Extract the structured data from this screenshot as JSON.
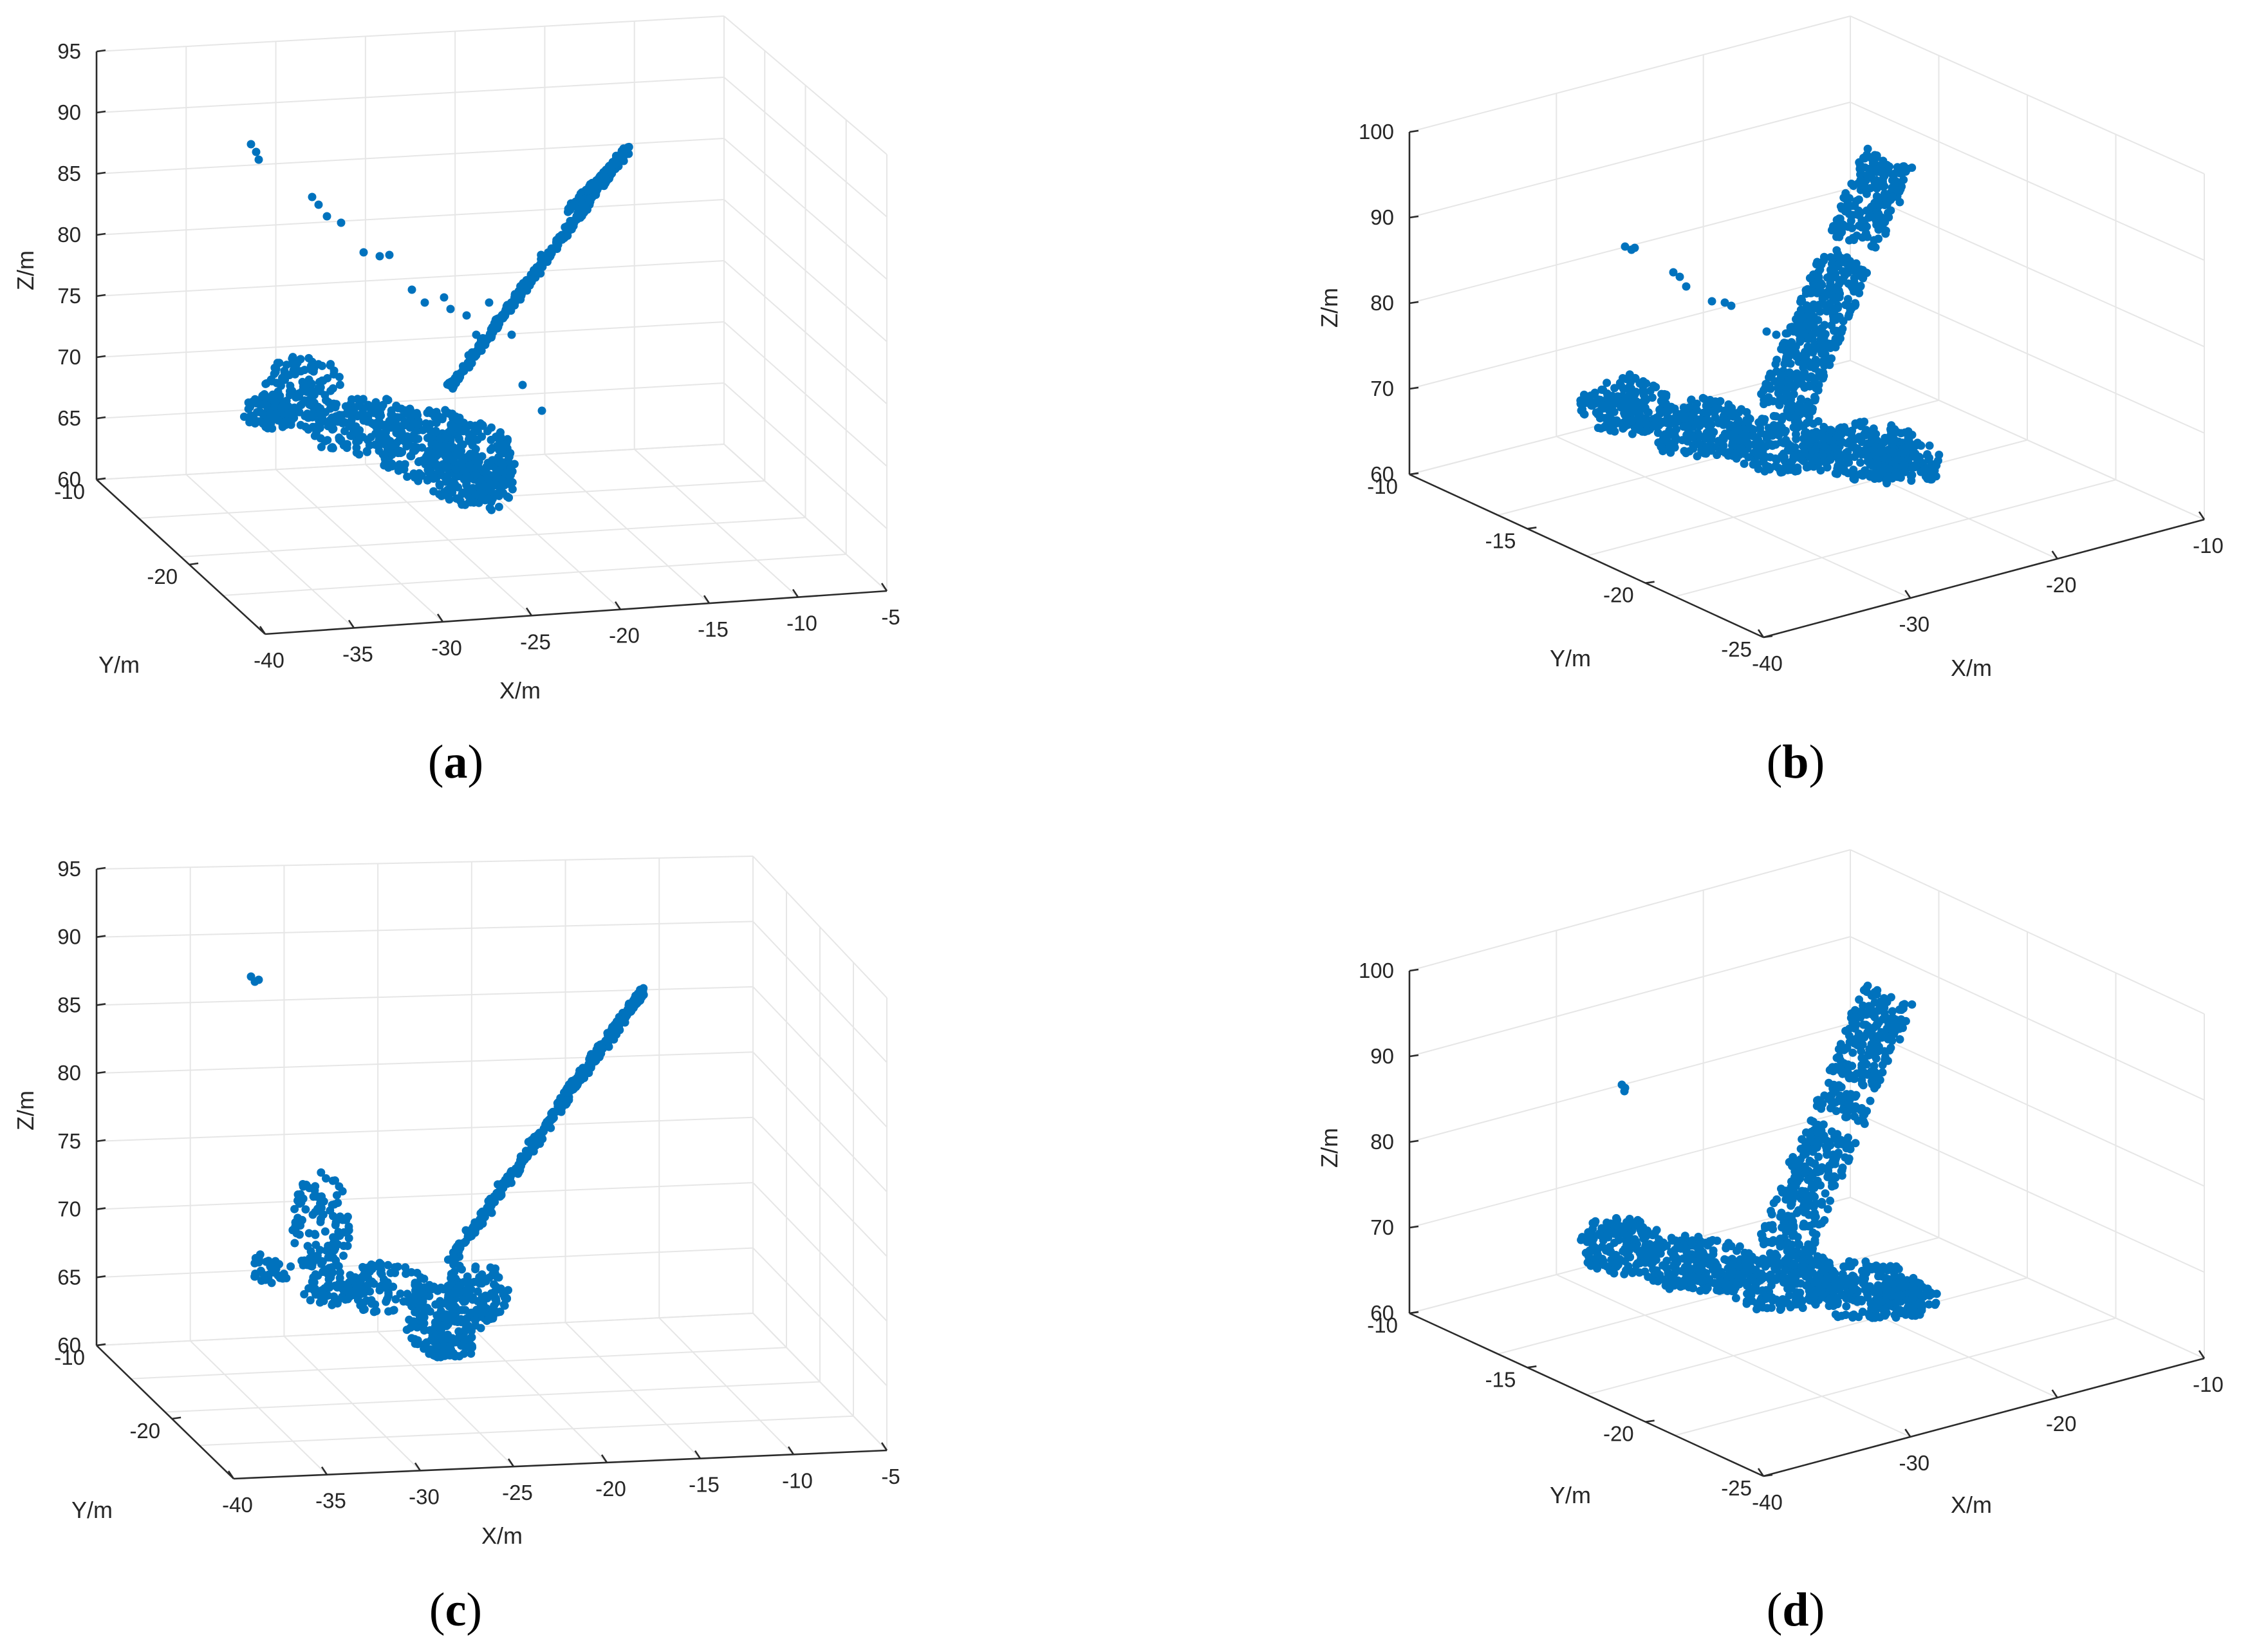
{
  "chart_data": [
    {
      "panel": "a",
      "type": "scatter",
      "caption_letter": "a",
      "view": "oblique-left",
      "marker_color": "#0072BD",
      "xlabel": "X/m",
      "ylabel": "Y/m",
      "zlabel": "Z/m",
      "xticks": [
        "-40",
        "-35",
        "-30",
        "-25",
        "-20",
        "-15",
        "-10",
        "-5"
      ],
      "yticks": [
        "-10",
        "-20"
      ],
      "zticks": [
        "60",
        "65",
        "70",
        "75",
        "80",
        "85",
        "90",
        "95"
      ],
      "xlim": [
        -40,
        -5
      ],
      "ylim": [
        -25,
        -10
      ],
      "zlim": [
        60,
        95
      ],
      "grid": true,
      "points_description_values": {
        "ground_cluster_z": [
          62,
          68
        ],
        "stem_z": [
          66,
          87
        ],
        "sparse_arm_z": [
          71,
          87
        ]
      }
    },
    {
      "panel": "b",
      "type": "scatter",
      "caption_letter": "b",
      "view": "oblique-right",
      "marker_color": "#0072BD",
      "xlabel": "X/m",
      "ylabel": "Y/m",
      "zlabel": "Z/m",
      "xticks": [
        "-40",
        "-30",
        "-20",
        "-10"
      ],
      "yticks": [
        "-10",
        "-15",
        "-20",
        "-25"
      ],
      "zticks": [
        "60",
        "70",
        "80",
        "90",
        "100"
      ],
      "xlim": [
        -40,
        -10
      ],
      "ylim": [
        -25,
        -10
      ],
      "zlim": [
        60,
        100
      ],
      "grid": true
    },
    {
      "panel": "c",
      "type": "scatter",
      "caption_letter": "c",
      "view": "oblique-left",
      "marker_color": "#0072BD",
      "xlabel": "X/m",
      "ylabel": "Y/m",
      "zlabel": "Z/m",
      "xticks": [
        "-40",
        "-35",
        "-30",
        "-25",
        "-20",
        "-15",
        "-10",
        "-5"
      ],
      "yticks": [
        "-10",
        "-20"
      ],
      "zticks": [
        "60",
        "65",
        "70",
        "75",
        "80",
        "85",
        "90",
        "95"
      ],
      "xlim": [
        -40,
        -5
      ],
      "ylim": [
        -25,
        -10
      ],
      "zlim": [
        60,
        95
      ],
      "grid": true
    },
    {
      "panel": "d",
      "type": "scatter",
      "caption_letter": "d",
      "view": "oblique-right",
      "marker_color": "#0072BD",
      "xlabel": "X/m",
      "ylabel": "Y/m",
      "zlabel": "Z/m",
      "xticks": [
        "-40",
        "-30",
        "-20",
        "-10"
      ],
      "yticks": [
        "-10",
        "-15",
        "-20",
        "-25"
      ],
      "zticks": [
        "60",
        "70",
        "80",
        "90",
        "100"
      ],
      "xlim": [
        -40,
        -10
      ],
      "ylim": [
        -25,
        -10
      ],
      "zlim": [
        60,
        100
      ],
      "grid": true
    }
  ]
}
